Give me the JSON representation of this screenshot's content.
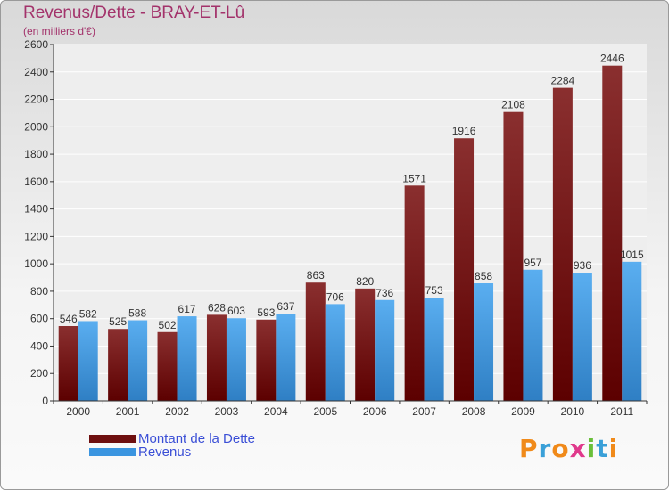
{
  "title": "Revenus/Dette - BRAY-ET-Lû",
  "subtitle": "(en milliers d'€)",
  "colors": {
    "debt_top": "#8a2f2f",
    "debt_bottom": "#5c0000",
    "revenue_top": "#5aaef0",
    "revenue_bottom": "#2f7fc4",
    "title": "#a3336b",
    "legend_text": "#3b4fd6"
  },
  "legend": {
    "items": [
      {
        "label": "Montant de la Dette",
        "color": "#6e0f0f"
      },
      {
        "label": "Revenus",
        "color": "#3b95e0"
      }
    ]
  },
  "logo": {
    "text": "Proxiti"
  },
  "chart_data": {
    "type": "bar",
    "categories": [
      "2000",
      "2001",
      "2002",
      "2003",
      "2004",
      "2005",
      "2006",
      "2007",
      "2008",
      "2009",
      "2010",
      "2011"
    ],
    "series": [
      {
        "name": "Montant de la Dette",
        "values": [
          546,
          525,
          502,
          628,
          593,
          863,
          820,
          1571,
          1916,
          2108,
          2284,
          2446
        ]
      },
      {
        "name": "Revenus",
        "values": [
          582,
          588,
          617,
          603,
          637,
          706,
          736,
          753,
          858,
          957,
          936,
          1015
        ]
      }
    ],
    "ylim": [
      0,
      2600
    ],
    "yticks": [
      0,
      200,
      400,
      600,
      800,
      1000,
      1200,
      1400,
      1600,
      1800,
      2000,
      2200,
      2400,
      2600
    ],
    "grid": true,
    "legend_position": "bottom-left"
  }
}
